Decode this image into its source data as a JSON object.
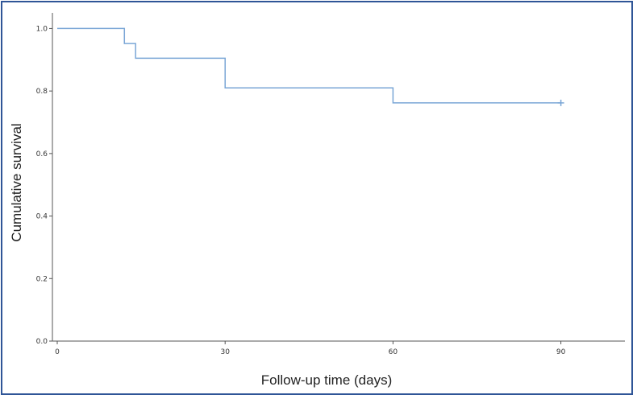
{
  "chart_data": {
    "type": "line",
    "subtype": "kaplan-meier step",
    "title": "",
    "xlabel": "Follow-up time (days)",
    "ylabel": "Cumulative survival",
    "xlim": [
      0,
      100
    ],
    "ylim": [
      0,
      1.05
    ],
    "x_ticks": [
      0,
      30,
      60,
      90
    ],
    "x_tick_labels": [
      "0",
      "30",
      "60",
      "90"
    ],
    "y_ticks": [
      0.0,
      0.2,
      0.4,
      0.6,
      0.8,
      1.0
    ],
    "y_tick_labels": [
      "0.0",
      "0.2",
      "0.4",
      "0.6",
      "0.8",
      "1.0"
    ],
    "grid": false,
    "series": [
      {
        "color": "#7aa6d6",
        "steps": [
          {
            "x": 0,
            "y": 1.0
          },
          {
            "x": 12,
            "y": 0.952
          },
          {
            "x": 14,
            "y": 0.905
          },
          {
            "x": 30,
            "y": 0.81
          },
          {
            "x": 60,
            "y": 0.762
          },
          {
            "x": 90,
            "y": 0.762
          }
        ],
        "censored": [
          {
            "x": 90,
            "y": 0.762
          }
        ]
      }
    ]
  }
}
